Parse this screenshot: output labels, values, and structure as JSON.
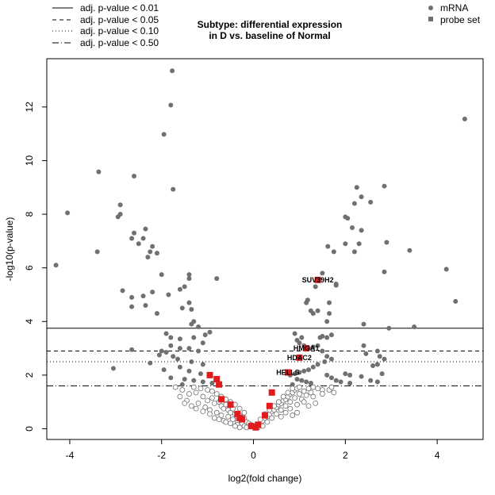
{
  "chart_data": {
    "type": "scatter",
    "title_lines": [
      "Subtype: differential expression",
      "in D vs. baseline of Normal"
    ],
    "xlabel": "log2(fold change)",
    "ylabel": "-log10(p-value)",
    "xlim": [
      -4.5,
      5.0
    ],
    "ylim": [
      -0.4,
      13.8
    ],
    "x_ticks": [
      -4,
      -2,
      0,
      2,
      4
    ],
    "y_ticks": [
      0,
      2,
      4,
      6,
      8,
      10,
      12
    ],
    "x_tick_labels": [
      "-4",
      "-2",
      "0",
      "2",
      "4"
    ],
    "y_tick_labels": [
      "0",
      "2",
      "4",
      "6",
      "8",
      "10",
      "12"
    ],
    "grid": false,
    "colors": {
      "significant": "#707070",
      "nonsignificant_edge": "#707070",
      "highlight": "#e31a1c"
    },
    "thresholds": [
      {
        "label": "adj. p-value < 0.01",
        "y": 3.75,
        "style": "solid"
      },
      {
        "label": "adj. p-value < 0.05",
        "y": 2.9,
        "style": "dashed"
      },
      {
        "label": "adj. p-value < 0.10",
        "y": 2.5,
        "style": "dotted"
      },
      {
        "label": "adj. p-value < 0.50",
        "y": 1.6,
        "style": "dashdot"
      }
    ],
    "legend_right": [
      {
        "label": "mRNA",
        "shape": "circle"
      },
      {
        "label": "probe set",
        "shape": "square"
      }
    ],
    "labeled_genes": [
      {
        "label": "SUV39H2",
        "x": 1.4,
        "y": 5.55
      },
      {
        "label": "HMGA1",
        "x": 1.15,
        "y": 3.0
      },
      {
        "label": "HDAC2",
        "x": 1.0,
        "y": 2.65
      },
      {
        "label": "HELLS",
        "x": 0.75,
        "y": 2.1
      }
    ],
    "series": [
      {
        "name": "mRNA",
        "role": "significant",
        "points": [
          [
            -1.77,
            13.35
          ],
          [
            -1.8,
            12.07
          ],
          [
            -1.95,
            10.98
          ],
          [
            -3.37,
            9.58
          ],
          [
            -2.6,
            9.42
          ],
          [
            -1.75,
            8.93
          ],
          [
            -4.05,
            8.05
          ],
          [
            -2.9,
            8.35
          ],
          [
            -2.9,
            8.0
          ],
          [
            -2.95,
            7.9
          ],
          [
            -2.35,
            7.45
          ],
          [
            -2.6,
            7.3
          ],
          [
            -2.65,
            7.1
          ],
          [
            -2.4,
            7.1
          ],
          [
            -2.5,
            6.9
          ],
          [
            -2.2,
            6.8
          ],
          [
            -2.25,
            6.6
          ],
          [
            -2.1,
            6.55
          ],
          [
            -2.3,
            6.4
          ],
          [
            -3.4,
            6.6
          ],
          [
            -4.3,
            6.1
          ],
          [
            -2.0,
            5.75
          ],
          [
            -1.4,
            5.75
          ],
          [
            -1.4,
            5.6
          ],
          [
            -0.8,
            5.6
          ],
          [
            -1.5,
            5.3
          ],
          [
            -1.6,
            5.2
          ],
          [
            -2.85,
            5.15
          ],
          [
            -2.2,
            5.1
          ],
          [
            -1.85,
            5.0
          ],
          [
            -2.4,
            4.95
          ],
          [
            -2.65,
            4.9
          ],
          [
            -2.35,
            4.6
          ],
          [
            -1.4,
            4.7
          ],
          [
            -1.55,
            4.5
          ],
          [
            -2.65,
            4.55
          ],
          [
            -1.35,
            4.45
          ],
          [
            -2.1,
            4.3
          ],
          [
            -1.3,
            4.0
          ],
          [
            -1.35,
            3.9
          ],
          [
            -1.2,
            3.8
          ],
          [
            -1.3,
            3.4
          ],
          [
            -0.95,
            3.6
          ],
          [
            -1.05,
            3.5
          ],
          [
            -1.9,
            3.55
          ],
          [
            -1.8,
            3.4
          ],
          [
            -1.6,
            3.35
          ],
          [
            -1.1,
            3.2
          ],
          [
            -1.8,
            3.1
          ],
          [
            -1.6,
            3.0
          ],
          [
            -1.4,
            3.0
          ],
          [
            -1.2,
            2.9
          ],
          [
            -2.0,
            2.9
          ],
          [
            -1.9,
            2.85
          ],
          [
            -2.65,
            2.95
          ],
          [
            -2.05,
            2.75
          ],
          [
            -1.75,
            2.7
          ],
          [
            -1.65,
            2.6
          ],
          [
            -1.35,
            2.5
          ],
          [
            -1.1,
            2.4
          ],
          [
            -2.25,
            2.45
          ],
          [
            -1.95,
            2.2
          ],
          [
            -1.6,
            2.3
          ],
          [
            -1.4,
            2.15
          ],
          [
            -1.15,
            2.05
          ],
          [
            -0.95,
            2.0
          ],
          [
            -1.8,
            1.9
          ],
          [
            -1.5,
            1.85
          ],
          [
            -1.3,
            1.8
          ],
          [
            -1.1,
            1.75
          ],
          [
            -0.9,
            1.7
          ],
          [
            -1.55,
            1.65
          ],
          [
            -3.05,
            2.25
          ],
          [
            1.18,
            4.8
          ],
          [
            1.15,
            4.7
          ],
          [
            1.25,
            4.4
          ],
          [
            1.3,
            4.3
          ],
          [
            1.4,
            4.4
          ],
          [
            1.6,
            4.0
          ],
          [
            1.65,
            4.3
          ],
          [
            1.65,
            4.7
          ],
          [
            1.35,
            5.3
          ],
          [
            1.5,
            5.8
          ],
          [
            1.8,
            5.4
          ],
          [
            1.8,
            5.35
          ],
          [
            1.62,
            6.8
          ],
          [
            1.75,
            6.6
          ],
          [
            2.0,
            6.9
          ],
          [
            2.2,
            6.6
          ],
          [
            2.3,
            6.9
          ],
          [
            2.35,
            7.4
          ],
          [
            2.15,
            7.5
          ],
          [
            2.0,
            7.9
          ],
          [
            2.05,
            7.85
          ],
          [
            2.2,
            8.4
          ],
          [
            2.35,
            8.65
          ],
          [
            2.25,
            9.0
          ],
          [
            2.55,
            8.45
          ],
          [
            2.85,
            9.05
          ],
          [
            2.9,
            6.95
          ],
          [
            2.85,
            5.85
          ],
          [
            3.4,
            6.65
          ],
          [
            4.2,
            5.95
          ],
          [
            4.4,
            4.75
          ],
          [
            3.5,
            3.8
          ],
          [
            2.95,
            3.75
          ],
          [
            2.4,
            3.9
          ],
          [
            4.6,
            11.55
          ],
          [
            0.9,
            3.55
          ],
          [
            0.95,
            3.3
          ],
          [
            1.0,
            3.2
          ],
          [
            1.05,
            3.4
          ],
          [
            1.1,
            3.1
          ],
          [
            1.2,
            3.0
          ],
          [
            1.3,
            3.05
          ],
          [
            1.4,
            3.1
          ],
          [
            1.45,
            3.4
          ],
          [
            1.5,
            3.45
          ],
          [
            1.6,
            3.4
          ],
          [
            1.7,
            3.5
          ],
          [
            1.5,
            2.9
          ],
          [
            1.6,
            2.7
          ],
          [
            1.7,
            2.6
          ],
          [
            1.55,
            2.5
          ],
          [
            1.4,
            2.4
          ],
          [
            1.3,
            2.3
          ],
          [
            1.2,
            2.2
          ],
          [
            1.1,
            2.15
          ],
          [
            1.0,
            2.1
          ],
          [
            0.9,
            2.05
          ],
          [
            0.8,
            2.0
          ],
          [
            1.6,
            2.0
          ],
          [
            1.7,
            1.9
          ],
          [
            1.8,
            1.8
          ],
          [
            1.9,
            1.75
          ],
          [
            0.95,
            1.85
          ],
          [
            1.05,
            1.8
          ],
          [
            1.15,
            1.75
          ],
          [
            1.25,
            1.7
          ],
          [
            0.85,
            1.65
          ],
          [
            2.0,
            2.05
          ],
          [
            2.1,
            2.0
          ],
          [
            2.4,
            3.1
          ],
          [
            2.45,
            2.8
          ],
          [
            2.7,
            2.9
          ],
          [
            2.75,
            2.7
          ],
          [
            2.7,
            2.4
          ],
          [
            2.6,
            2.35
          ],
          [
            2.8,
            2.05
          ],
          [
            2.85,
            2.6
          ],
          [
            2.35,
            1.95
          ],
          [
            2.7,
            1.75
          ],
          [
            2.55,
            1.8
          ],
          [
            2.1,
            1.7
          ]
        ]
      },
      {
        "name": "mRNA",
        "role": "not significant",
        "points": [
          [
            -1.55,
            1.45
          ],
          [
            -1.4,
            1.3
          ],
          [
            -1.25,
            1.35
          ],
          [
            -1.1,
            1.2
          ],
          [
            -1.0,
            1.05
          ],
          [
            -0.9,
            1.15
          ],
          [
            -0.85,
            0.95
          ],
          [
            -0.75,
            1.0
          ],
          [
            -0.7,
            0.85
          ],
          [
            -0.65,
            0.75
          ],
          [
            -0.6,
            0.9
          ],
          [
            -0.55,
            0.7
          ],
          [
            -0.5,
            0.6
          ],
          [
            -0.45,
            0.75
          ],
          [
            -0.4,
            0.55
          ],
          [
            -0.35,
            0.45
          ],
          [
            -0.3,
            0.5
          ],
          [
            -0.25,
            0.35
          ],
          [
            -0.2,
            0.4
          ],
          [
            -0.15,
            0.25
          ],
          [
            -0.1,
            0.2
          ],
          [
            -0.05,
            0.15
          ],
          [
            -1.3,
            1.55
          ],
          [
            -1.15,
            1.5
          ],
          [
            -1.0,
            1.45
          ],
          [
            -0.9,
            1.4
          ],
          [
            -0.8,
            1.3
          ],
          [
            -0.7,
            1.2
          ],
          [
            -0.6,
            1.1
          ],
          [
            -0.5,
            1.0
          ],
          [
            -0.4,
            0.9
          ],
          [
            -0.3,
            0.75
          ],
          [
            -0.2,
            0.6
          ],
          [
            -1.6,
            1.2
          ],
          [
            -1.45,
            1.05
          ],
          [
            -1.2,
            0.95
          ],
          [
            -1.05,
            0.8
          ],
          [
            -0.95,
            0.7
          ],
          [
            -0.8,
            0.6
          ],
          [
            -0.7,
            0.5
          ],
          [
            -0.55,
            0.45
          ],
          [
            -0.45,
            0.35
          ],
          [
            -0.35,
            0.25
          ],
          [
            -0.25,
            0.2
          ],
          [
            -1.35,
            0.85
          ],
          [
            -1.1,
            0.65
          ],
          [
            -0.85,
            0.4
          ],
          [
            -0.65,
            0.3
          ],
          [
            -0.5,
            0.2
          ],
          [
            -0.35,
            0.15
          ],
          [
            -0.2,
            0.1
          ],
          [
            -1.7,
            1.55
          ],
          [
            -0.95,
            0.55
          ],
          [
            -0.75,
            0.35
          ],
          [
            -0.6,
            0.25
          ],
          [
            -0.4,
            0.1
          ],
          [
            -0.3,
            0.05
          ],
          [
            -0.15,
            0.05
          ],
          [
            -1.5,
            0.95
          ],
          [
            -1.25,
            0.75
          ],
          [
            0.05,
            0.1
          ],
          [
            0.1,
            0.15
          ],
          [
            0.15,
            0.2
          ],
          [
            0.2,
            0.3
          ],
          [
            0.25,
            0.4
          ],
          [
            0.3,
            0.45
          ],
          [
            0.35,
            0.55
          ],
          [
            0.4,
            0.65
          ],
          [
            0.45,
            0.7
          ],
          [
            0.5,
            0.8
          ],
          [
            0.55,
            0.9
          ],
          [
            0.6,
            0.95
          ],
          [
            0.65,
            1.05
          ],
          [
            0.7,
            1.1
          ],
          [
            0.75,
            1.2
          ],
          [
            0.8,
            1.3
          ],
          [
            0.85,
            1.35
          ],
          [
            0.9,
            1.45
          ],
          [
            0.95,
            1.5
          ],
          [
            1.0,
            1.55
          ],
          [
            0.15,
            0.35
          ],
          [
            0.25,
            0.55
          ],
          [
            0.35,
            0.7
          ],
          [
            0.45,
            0.85
          ],
          [
            0.55,
            1.0
          ],
          [
            0.65,
            1.2
          ],
          [
            0.75,
            1.35
          ],
          [
            0.85,
            1.5
          ],
          [
            0.3,
            0.25
          ],
          [
            0.4,
            0.4
          ],
          [
            0.5,
            0.55
          ],
          [
            0.6,
            0.7
          ],
          [
            0.7,
            0.85
          ],
          [
            0.8,
            1.0
          ],
          [
            0.9,
            1.15
          ],
          [
            1.0,
            1.3
          ],
          [
            1.1,
            1.4
          ],
          [
            1.2,
            1.5
          ],
          [
            1.3,
            1.55
          ],
          [
            1.4,
            1.5
          ],
          [
            1.5,
            1.45
          ],
          [
            1.05,
            1.1
          ],
          [
            1.15,
            1.25
          ],
          [
            1.25,
            1.35
          ],
          [
            0.6,
            0.45
          ],
          [
            0.7,
            0.6
          ],
          [
            0.8,
            0.75
          ],
          [
            0.95,
            0.9
          ],
          [
            1.1,
            1.0
          ],
          [
            1.3,
            1.2
          ],
          [
            1.5,
            1.3
          ],
          [
            1.65,
            1.45
          ],
          [
            1.7,
            1.55
          ],
          [
            0.2,
            0.1
          ],
          [
            0.1,
            0.05
          ],
          [
            0.95,
            0.6
          ],
          [
            0.85,
            0.5
          ],
          [
            1.2,
            0.85
          ],
          [
            1.35,
            0.95
          ],
          [
            1.75,
            1.35
          ]
        ]
      },
      {
        "name": "probe set",
        "role": "highlighted",
        "points": [
          [
            -0.95,
            2.0
          ],
          [
            -0.8,
            1.85
          ],
          [
            -0.75,
            1.65
          ],
          [
            -0.7,
            1.1
          ],
          [
            -0.5,
            0.9
          ],
          [
            -0.35,
            0.55
          ],
          [
            -0.3,
            0.4
          ],
          [
            -0.25,
            0.35
          ],
          [
            -0.05,
            0.1
          ],
          [
            0.05,
            0.05
          ],
          [
            0.1,
            0.15
          ],
          [
            0.25,
            0.5
          ],
          [
            0.35,
            0.85
          ],
          [
            0.4,
            1.35
          ],
          [
            0.75,
            2.1
          ],
          [
            1.0,
            2.65
          ],
          [
            1.15,
            3.0
          ],
          [
            1.4,
            5.55
          ]
        ]
      }
    ]
  }
}
